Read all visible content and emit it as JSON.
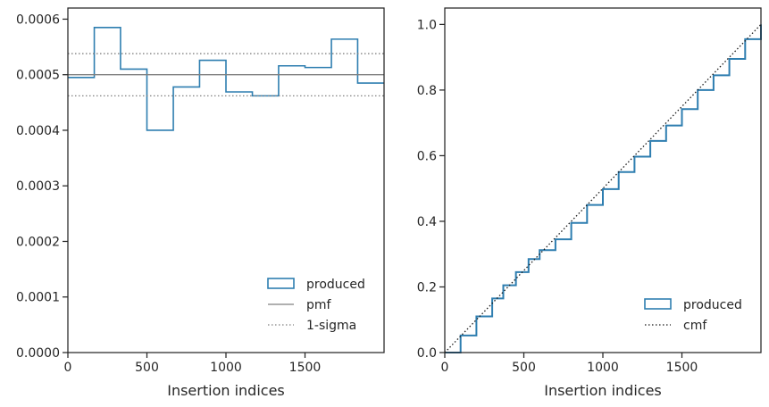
{
  "colors": {
    "produced": "#2e7eb0",
    "pmf": "#808080",
    "sigma": "#808080",
    "cmf": "#1a1a1a",
    "axes": "#262626"
  },
  "chart_data": [
    {
      "type": "step",
      "xlabel": "Insertion indices",
      "ylabel": "",
      "xlim": [
        0,
        2000
      ],
      "ylim": [
        0,
        0.00062
      ],
      "xticks": [
        0,
        500,
        1000,
        1500
      ],
      "xtick_labels": [
        "0",
        "500",
        "1000",
        "1500"
      ],
      "yticks": [
        0,
        0.0001,
        0.0002,
        0.0003,
        0.0004,
        0.0005,
        0.0006
      ],
      "ytick_labels": [
        "0.0000",
        "0.0001",
        "0.0002",
        "0.0003",
        "0.0004",
        "0.0005",
        "0.0006"
      ],
      "bin_edges": [
        0,
        167,
        333,
        500,
        667,
        833,
        1000,
        1167,
        1333,
        1500,
        1667,
        1833,
        2000
      ],
      "series": [
        {
          "name": "produced",
          "style": "step",
          "values": [
            0.000495,
            0.000585,
            0.00051,
            0.0004,
            0.000478,
            0.000526,
            0.000469,
            0.000462,
            0.000516,
            0.000513,
            0.000564,
            0.000485
          ]
        },
        {
          "name": "pmf",
          "style": "hline",
          "y": 0.0005
        },
        {
          "name": "1-sigma",
          "style": "hline-dotted",
          "y": [
            0.000462,
            0.000538
          ]
        }
      ],
      "legend": {
        "position": "bottom-right",
        "entries": [
          "produced",
          "pmf",
          "1-sigma"
        ]
      },
      "grid": false
    },
    {
      "type": "line",
      "xlabel": "Insertion indices",
      "ylabel": "",
      "xlim": [
        0,
        2000
      ],
      "ylim": [
        0,
        1.05
      ],
      "xticks": [
        0,
        500,
        1000,
        1500
      ],
      "xtick_labels": [
        "0",
        "500",
        "1000",
        "1500"
      ],
      "yticks": [
        0,
        0.2,
        0.4,
        0.6,
        0.8,
        1.0
      ],
      "ytick_labels": [
        "0.0",
        "0.2",
        "0.4",
        "0.6",
        "0.8",
        "1.0"
      ],
      "series": [
        {
          "name": "produced",
          "style": "step",
          "x": [
            0,
            100,
            200,
            300,
            370,
            450,
            530,
            600,
            700,
            800,
            900,
            1000,
            1100,
            1200,
            1300,
            1400,
            1500,
            1600,
            1700,
            1800,
            1900,
            2000
          ],
          "y": [
            0,
            0.052,
            0.11,
            0.165,
            0.205,
            0.245,
            0.285,
            0.312,
            0.345,
            0.395,
            0.45,
            0.498,
            0.55,
            0.597,
            0.645,
            0.692,
            0.742,
            0.8,
            0.845,
            0.895,
            0.955,
            1.0
          ]
        },
        {
          "name": "cmf",
          "style": "dotted",
          "x": [
            0,
            2000
          ],
          "y": [
            0,
            1.0
          ]
        }
      ],
      "legend": {
        "position": "bottom-right",
        "entries": [
          "produced",
          "cmf"
        ]
      },
      "grid": false
    }
  ]
}
